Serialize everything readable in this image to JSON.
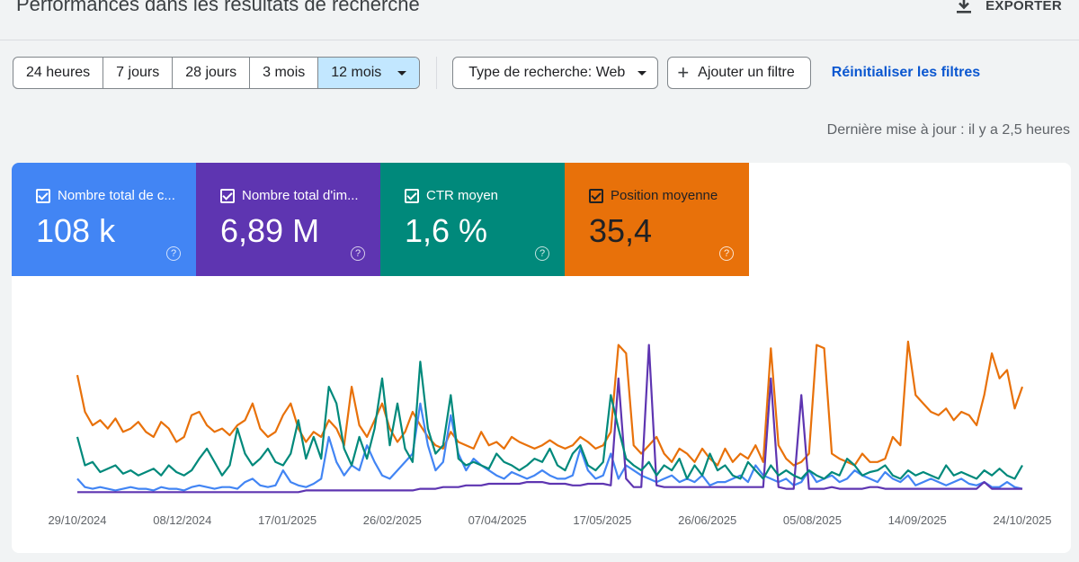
{
  "header": {
    "title": "Performances dans les résultats de recherche",
    "export_label": "EXPORTER"
  },
  "toolbar": {
    "ranges": [
      "24 heures",
      "7 jours",
      "28 jours",
      "3 mois",
      "12 mois"
    ],
    "active_range": "12 mois",
    "search_type": "Type de recherche: Web",
    "add_filter": "Ajouter un filtre",
    "reset_filters": "Réinitialiser les filtres"
  },
  "last_update": "Dernière mise à jour : il y a 2,5 heures",
  "metrics": [
    {
      "label": "Nombre total de c...",
      "value": "108 k",
      "color": "#4285f4"
    },
    {
      "label": "Nombre total d'im...",
      "value": "6,89 M",
      "color": "#5e35b1"
    },
    {
      "label": "CTR moyen",
      "value": "1,6 %",
      "color": "#00897b"
    },
    {
      "label": "Position moyenne",
      "value": "35,4",
      "color": "#e8710a"
    }
  ],
  "chart_data": {
    "type": "line",
    "title": "",
    "x_ticks": [
      "29/10/2024",
      "08/12/2024",
      "17/01/2025",
      "26/02/2025",
      "07/04/2025",
      "17/05/2025",
      "26/06/2025",
      "05/08/2025",
      "14/09/2025",
      "24/10/2025"
    ],
    "x_range_days": 365,
    "y_range": [
      0,
      100
    ],
    "note": "Values are relative (0-100) per series; each series normalized to its own scale, sampled every 5 days from 29/10/2024",
    "series": [
      {
        "name": "Position moyenne",
        "color": "#e8710a",
        "values": [
          72,
          50,
          42,
          45,
          40,
          46,
          38,
          40,
          44,
          38,
          35,
          44,
          40,
          32,
          35,
          48,
          50,
          42,
          38,
          40,
          36,
          42,
          45,
          55,
          40,
          35,
          38,
          48,
          55,
          40,
          32,
          38,
          35,
          45,
          40,
          30,
          65,
          42,
          35,
          45,
          55,
          40,
          32,
          38,
          50,
          42,
          35,
          30,
          28,
          38,
          32,
          30,
          28,
          38,
          30,
          32,
          28,
          35,
          32,
          30,
          28,
          30,
          33,
          30,
          28,
          30,
          35,
          32,
          28,
          30,
          38,
          90,
          85,
          30,
          25,
          30,
          35,
          25,
          20,
          28,
          25,
          20,
          28,
          22,
          18,
          28,
          20,
          25,
          22,
          30,
          20,
          88,
          30,
          22,
          18,
          20,
          25,
          90,
          88,
          25,
          22,
          20,
          18,
          25,
          20,
          20,
          22,
          35,
          30,
          92,
          60,
          55,
          50,
          48,
          52,
          45,
          50,
          48,
          42,
          60,
          85,
          70,
          75,
          52,
          65
        ]
      },
      {
        "name": "Nombre total de clics",
        "color": "#4285f4",
        "values": [
          10,
          5,
          4,
          5,
          4,
          3,
          4,
          5,
          4,
          4,
          3,
          5,
          4,
          4,
          3,
          5,
          6,
          5,
          4,
          5,
          5,
          4,
          8,
          10,
          6,
          5,
          6,
          15,
          8,
          6,
          5,
          7,
          10,
          35,
          20,
          12,
          18,
          15,
          30,
          20,
          12,
          10,
          15,
          20,
          25,
          55,
          30,
          15,
          20,
          48,
          25,
          15,
          22,
          18,
          15,
          12,
          10,
          14,
          12,
          10,
          12,
          15,
          12,
          10,
          10,
          12,
          28,
          15,
          10,
          12,
          25,
          10,
          18,
          15,
          12,
          10,
          8,
          10,
          12,
          8,
          10,
          8,
          12,
          6,
          8,
          8,
          10,
          12,
          8,
          18,
          12,
          10,
          8,
          10,
          6,
          8,
          15,
          8,
          10,
          12,
          8,
          10,
          15,
          12,
          10,
          8,
          14,
          10,
          8,
          12,
          6,
          8,
          10,
          8,
          6,
          8,
          10,
          7,
          6,
          8,
          5,
          5,
          8,
          5,
          4
        ]
      },
      {
        "name": "Nombre total d'impressions",
        "color": "#5e35b1",
        "values": [
          2,
          2,
          2,
          2,
          2,
          2,
          2,
          2,
          2,
          2,
          2,
          2,
          2,
          2,
          2,
          2,
          2,
          2,
          2,
          2,
          2,
          2,
          2,
          2,
          2,
          2,
          2,
          2,
          2,
          2,
          3,
          3,
          3,
          3,
          3,
          3,
          3,
          3,
          3,
          3,
          3,
          3,
          3,
          3,
          3,
          4,
          4,
          4,
          5,
          5,
          5,
          6,
          6,
          6,
          7,
          7,
          7,
          7,
          7,
          8,
          8,
          8,
          7,
          7,
          7,
          6,
          6,
          7,
          7,
          7,
          6,
          70,
          10,
          5,
          5,
          90,
          6,
          5,
          5,
          5,
          5,
          5,
          5,
          5,
          5,
          5,
          5,
          5,
          5,
          5,
          5,
          70,
          5,
          4,
          4,
          60,
          4,
          4,
          4,
          5,
          4,
          4,
          4,
          4,
          5,
          5,
          4,
          4,
          4,
          4,
          4,
          4,
          4,
          4,
          4,
          4,
          4,
          4,
          4,
          8,
          4,
          4,
          4,
          4,
          4
        ]
      },
      {
        "name": "CTR moyen",
        "color": "#00897b",
        "values": [
          35,
          18,
          20,
          14,
          16,
          18,
          13,
          15,
          12,
          14,
          16,
          12,
          18,
          14,
          12,
          15,
          22,
          28,
          20,
          12,
          18,
          40,
          25,
          18,
          22,
          28,
          20,
          18,
          25,
          45,
          22,
          35,
          22,
          65,
          55,
          28,
          18,
          35,
          22,
          40,
          70,
          30,
          55,
          28,
          20,
          80,
          40,
          25,
          30,
          60,
          22,
          18,
          20,
          18,
          16,
          25,
          20,
          18,
          15,
          18,
          22,
          20,
          28,
          18,
          15,
          25,
          30,
          18,
          15,
          20,
          60,
          40,
          22,
          18,
          15,
          20,
          12,
          18,
          15,
          22,
          10,
          18,
          12,
          25,
          15,
          18,
          12,
          10,
          20,
          15,
          10,
          18,
          12,
          15,
          12,
          10,
          15,
          12,
          10,
          14,
          12,
          22,
          18,
          12,
          14,
          15,
          18,
          12,
          10,
          15,
          12,
          14,
          12,
          10,
          18,
          12,
          14,
          12,
          10,
          15,
          12,
          16,
          12,
          10,
          18
        ]
      }
    ]
  }
}
